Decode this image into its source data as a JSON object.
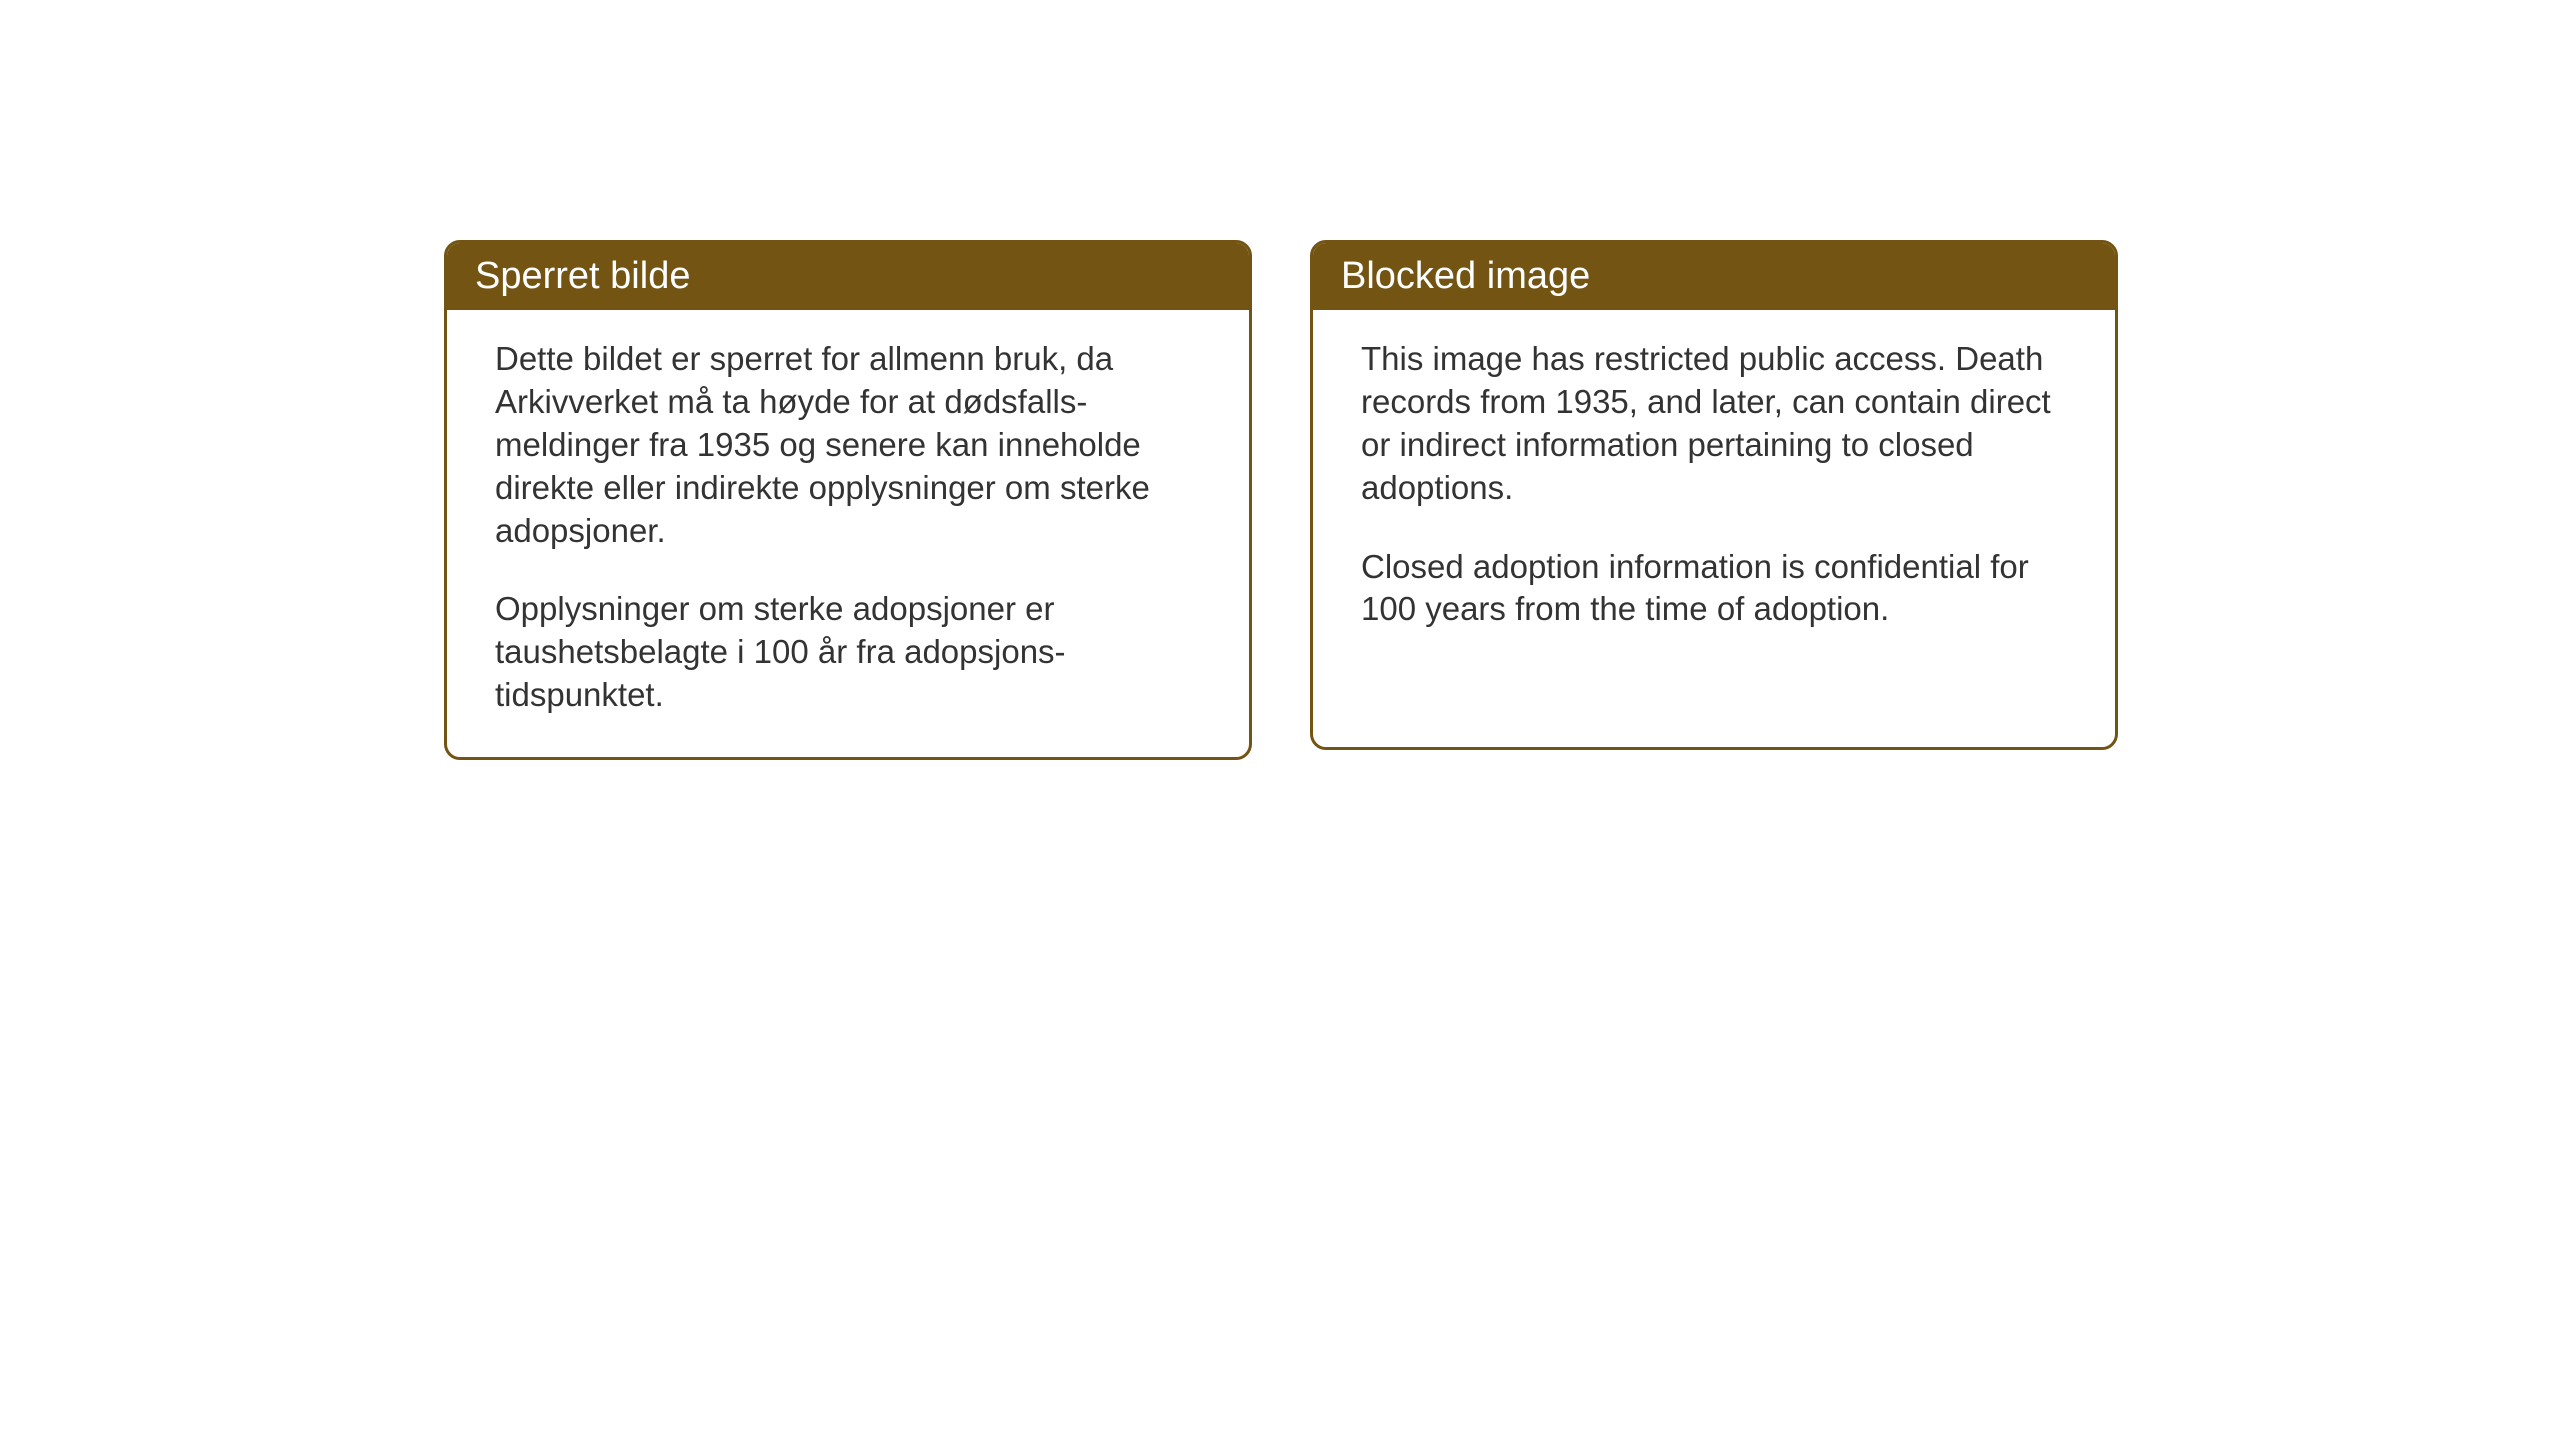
{
  "layout": {
    "background_color": "#ffffff",
    "card_border_color": "#735413",
    "card_header_bg": "#735413",
    "card_header_text_color": "#ffffff",
    "card_body_text_color": "#333333",
    "card_border_radius": 16,
    "card_border_width": 3,
    "header_fontsize": 38,
    "body_fontsize": 33
  },
  "cards": {
    "left": {
      "title": "Sperret bilde",
      "paragraph1": "Dette bildet er sperret for allmenn bruk, da Arkivverket må ta høyde for at dødsfalls-meldinger fra 1935 og senere kan inneholde direkte eller indirekte opplysninger om sterke adopsjoner.",
      "paragraph2": "Opplysninger om sterke adopsjoner er taushetsbelagte i 100 år fra adopsjons-tidspunktet."
    },
    "right": {
      "title": "Blocked image",
      "paragraph1": "This image has restricted public access. Death records from 1935, and later, can contain direct or indirect information pertaining to closed adoptions.",
      "paragraph2": "Closed adoption information is confidential for 100 years from the time of adoption."
    }
  }
}
